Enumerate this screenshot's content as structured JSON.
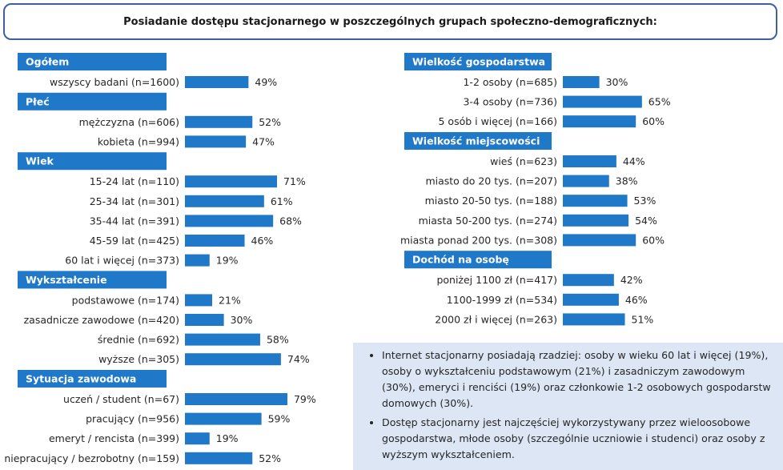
{
  "title": "Posiadanie dostępu stacjonarnego w poszczególnych grupach społeczno-demograficznych:",
  "chart_data": [
    {
      "type": "bar",
      "orientation": "horizontal",
      "title": "Ogółem",
      "categories": [
        "wszyscy badani (n=1600)"
      ],
      "values": [
        49
      ],
      "value_labels": [
        "49%"
      ]
    },
    {
      "type": "bar",
      "orientation": "horizontal",
      "title": "Płeć",
      "categories": [
        "mężczyzna (n=606)",
        "kobieta (n=994)"
      ],
      "values": [
        52,
        47
      ],
      "value_labels": [
        "52%",
        "47%"
      ]
    },
    {
      "type": "bar",
      "orientation": "horizontal",
      "title": "Wiek",
      "categories": [
        "15-24 lat (n=110)",
        "25-34 lat (n=301)",
        "35-44 lat (n=391)",
        "45-59 lat (n=425)",
        "60 lat i więcej (n=373)"
      ],
      "values": [
        71,
        61,
        68,
        46,
        19
      ],
      "value_labels": [
        "71%",
        "61%",
        "68%",
        "46%",
        "19%"
      ]
    },
    {
      "type": "bar",
      "orientation": "horizontal",
      "title": "Wykształcenie",
      "categories": [
        "podstawowe (n=174)",
        "zasadnicze zawodowe (n=420)",
        "średnie (n=692)",
        "wyższe (n=305)"
      ],
      "values": [
        21,
        30,
        58,
        74
      ],
      "value_labels": [
        "21%",
        "30%",
        "58%",
        "74%"
      ]
    },
    {
      "type": "bar",
      "orientation": "horizontal",
      "title": "Sytuacja zawodowa",
      "categories": [
        "uczeń / student (n=67)",
        "pracujący (n=956)",
        "emeryt / rencista (n=399)",
        "niepracujący / bezrobotny (n=159)"
      ],
      "values": [
        79,
        59,
        19,
        52
      ],
      "value_labels": [
        "79%",
        "59%",
        "19%",
        "52%"
      ]
    },
    {
      "type": "bar",
      "orientation": "horizontal",
      "title": "Wielkość gospodarstwa",
      "categories": [
        "1-2 osoby (n=685)",
        "3-4 osoby (n=736)",
        "5 osób i więcej (n=166)"
      ],
      "values": [
        30,
        65,
        60
      ],
      "value_labels": [
        "30%",
        "65%",
        "60%"
      ]
    },
    {
      "type": "bar",
      "orientation": "horizontal",
      "title": "Wielkość miejscowości",
      "categories": [
        "wieś (n=623)",
        "miasto do 20 tys. (n=207)",
        "miasto 20-50 tys. (n=188)",
        "miasta 50-200 tys. (n=274)",
        "miasta ponad 200 tys. (n=308)"
      ],
      "values": [
        44,
        38,
        53,
        54,
        60
      ],
      "value_labels": [
        "44%",
        "38%",
        "53%",
        "54%",
        "60%"
      ]
    },
    {
      "type": "bar",
      "orientation": "horizontal",
      "title": "Dochód na osobę",
      "categories": [
        "poniżej 1100 zł (n=417)",
        "1100-1999 zł (n=534)",
        "2000 zł i więcej (n=263)"
      ],
      "values": [
        42,
        46,
        51
      ],
      "value_labels": [
        "42%",
        "46%",
        "51%"
      ]
    }
  ],
  "notes": [
    "Internet stacjonarny posiadają rzadziej: osoby w wieku 60 lat i więcej (19%), osoby o wykształceniu podstawowym (21%) i zasadniczym zawodowym (30%), emeryci i renciści (19%) oraz członkowie 1-2 osobowych gospodarstw domowych (30%).",
    "Dostęp stacjonarny jest najczęściej wykorzystywany przez wieloosobowe gospodarstwa, młode osoby (szczególnie uczniowie i studenci) oraz osoby z wyższym wykształceniem."
  ],
  "colors": {
    "bar": "#1f78c8",
    "header": "#1f78c8",
    "header_text": "#ffffff",
    "note_bg": "#dce6f4",
    "title_border": "#3f5f9e"
  }
}
